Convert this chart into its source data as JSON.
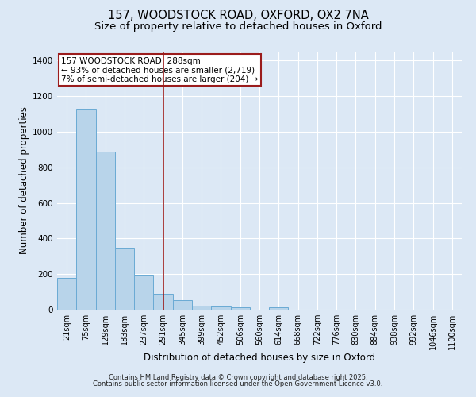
{
  "title_line1": "157, WOODSTOCK ROAD, OXFORD, OX2 7NA",
  "title_line2": "Size of property relative to detached houses in Oxford",
  "xlabel": "Distribution of detached houses by size in Oxford",
  "ylabel": "Number of detached properties",
  "categories": [
    "21sqm",
    "75sqm",
    "129sqm",
    "183sqm",
    "237sqm",
    "291sqm",
    "345sqm",
    "399sqm",
    "452sqm",
    "506sqm",
    "560sqm",
    "614sqm",
    "668sqm",
    "722sqm",
    "776sqm",
    "830sqm",
    "884sqm",
    "938sqm",
    "992sqm",
    "1046sqm",
    "1100sqm"
  ],
  "values": [
    180,
    1130,
    890,
    350,
    195,
    90,
    55,
    22,
    20,
    15,
    0,
    15,
    0,
    0,
    0,
    0,
    0,
    0,
    0,
    0,
    0
  ],
  "bar_color": "#b8d4ea",
  "bar_edge_color": "#6aaad4",
  "bar_edge_width": 0.7,
  "background_color": "#dce8f5",
  "grid_color": "#ffffff",
  "red_line_x": 5.5,
  "red_line_color": "#9b1c1c",
  "annotation_text": "157 WOODSTOCK ROAD: 288sqm\n← 93% of detached houses are smaller (2,719)\n7% of semi-detached houses are larger (204) →",
  "annotation_box_color": "#ffffff",
  "annotation_box_edge_color": "#9b1c1c",
  "ylim": [
    0,
    1450
  ],
  "yticks": [
    0,
    200,
    400,
    600,
    800,
    1000,
    1200,
    1400
  ],
  "footer_line1": "Contains HM Land Registry data © Crown copyright and database right 2025.",
  "footer_line2": "Contains public sector information licensed under the Open Government Licence v3.0.",
  "title_fontsize": 10.5,
  "subtitle_fontsize": 9.5,
  "axis_label_fontsize": 8.5,
  "tick_fontsize": 7,
  "annotation_fontsize": 7.5,
  "footer_fontsize": 6
}
